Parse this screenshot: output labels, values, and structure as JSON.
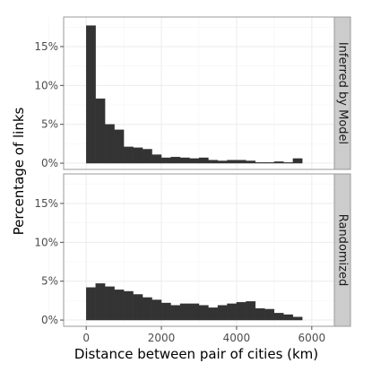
{
  "chart_data": {
    "type": "bar",
    "xlabel": "Distance between pair of cities (km)",
    "ylabel": "Percentage of links",
    "xlim": [
      -600,
      6600
    ],
    "ylim": [
      -0.8,
      18.8
    ],
    "bin_width": 250,
    "x_ticks": [
      0,
      2000,
      4000,
      6000
    ],
    "x_tick_labels": [
      "0",
      "2000",
      "4000",
      "6000"
    ],
    "y_ticks": [
      0,
      5,
      10,
      15
    ],
    "y_tick_labels": [
      "0%",
      "5%",
      "10%",
      "15%"
    ],
    "grid": true,
    "panels": [
      {
        "strip_label": "Inferred by Model",
        "bin_starts": [
          0,
          250,
          500,
          750,
          1000,
          1250,
          1500,
          1750,
          2000,
          2250,
          2500,
          2750,
          3000,
          3250,
          3500,
          3750,
          4000,
          4250,
          4500,
          4750,
          5000,
          5250,
          5500,
          5750
        ],
        "values": [
          17.7,
          8.3,
          5.0,
          4.3,
          2.1,
          2.0,
          1.8,
          1.1,
          0.7,
          0.8,
          0.7,
          0.6,
          0.7,
          0.4,
          0.3,
          0.4,
          0.4,
          0.3,
          0.1,
          0.1,
          0.2,
          0.1,
          0.6,
          0.0
        ]
      },
      {
        "strip_label": "Randomized",
        "bin_starts": [
          0,
          250,
          500,
          750,
          1000,
          1250,
          1500,
          1750,
          2000,
          2250,
          2500,
          2750,
          3000,
          3250,
          3500,
          3750,
          4000,
          4250,
          4500,
          4750,
          5000,
          5250,
          5500,
          5750
        ],
        "values": [
          4.2,
          4.7,
          4.3,
          3.9,
          3.7,
          3.3,
          2.9,
          2.6,
          2.2,
          1.9,
          2.1,
          2.1,
          1.9,
          1.6,
          1.9,
          2.1,
          2.3,
          2.4,
          1.5,
          1.4,
          0.9,
          0.7,
          0.4,
          0.0
        ]
      }
    ]
  }
}
